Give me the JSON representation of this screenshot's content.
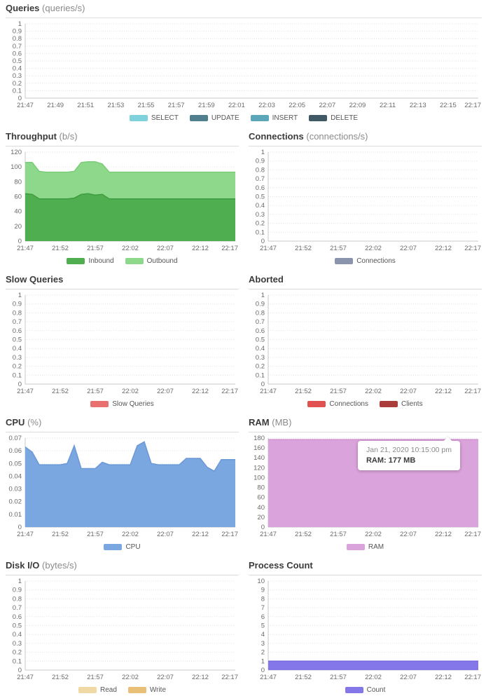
{
  "tooltip": {
    "date": "Jan 21, 2020 10:15:00 pm",
    "value": "RAM: 177 MB"
  },
  "chart_data": [
    {
      "type": "area",
      "title": "Queries",
      "units": "(queries/s)",
      "ymax": 1,
      "ylim": [
        0,
        1
      ],
      "grid": true,
      "legend_position": "bottom",
      "ylabels": [
        "1",
        "0.9",
        "0.8",
        "0.7",
        "0.6",
        "0.5",
        "0.4",
        "0.3",
        "0.2",
        "0.1",
        "0"
      ],
      "xlabels": [
        "21:47",
        "21:49",
        "21:51",
        "21:53",
        "21:55",
        "21:57",
        "21:59",
        "22:01",
        "22:03",
        "22:05",
        "22:07",
        "22:09",
        "22:11",
        "22:13",
        "22:15",
        "22:17"
      ],
      "x_range": [
        "21:47",
        "22:17"
      ],
      "series": [
        {
          "name": "SELECT",
          "color": "#7fd1db",
          "values": []
        },
        {
          "name": "UPDATE",
          "color": "#50808d",
          "values": []
        },
        {
          "name": "INSERT",
          "color": "#5ba6b8",
          "values": []
        },
        {
          "name": "DELETE",
          "color": "#3f5a64",
          "values": []
        }
      ]
    },
    {
      "type": "area",
      "title": "Throughput",
      "units": "(b/s)",
      "ymax": 120,
      "ylim": [
        0,
        120
      ],
      "grid": true,
      "legend_position": "bottom",
      "ylabels": [
        "120",
        "100",
        "80",
        "60",
        "40",
        "20",
        "0"
      ],
      "xlabels": [
        "21:47",
        "21:52",
        "21:57",
        "22:02",
        "22:07",
        "22:12",
        "22:17"
      ],
      "x_range": [
        "21:47",
        "22:17"
      ],
      "series": [
        {
          "name": "Inbound",
          "color": "#4faf50",
          "stroke": "#3f9b40",
          "values": [
            64,
            63,
            57,
            57,
            57,
            57,
            57,
            58,
            63,
            64,
            62,
            63,
            57,
            57,
            57,
            57,
            57,
            57,
            57,
            57,
            57,
            57,
            57,
            57,
            57,
            57,
            57,
            57,
            57,
            57,
            57
          ]
        },
        {
          "name": "Outbound",
          "color": "#8ed88b",
          "stroke": "#7bcc78",
          "values": [
            106,
            106,
            94,
            93,
            93,
            93,
            93,
            94,
            106,
            107,
            107,
            104,
            93,
            93,
            93,
            93,
            93,
            93,
            93,
            93,
            93,
            93,
            93,
            93,
            93,
            93,
            93,
            93,
            93,
            93,
            93
          ]
        }
      ]
    },
    {
      "type": "area",
      "title": "Connections",
      "units": "(connections/s)",
      "ymax": 1,
      "ylim": [
        0,
        1
      ],
      "grid": true,
      "legend_position": "bottom",
      "ylabels": [
        "1",
        "0.9",
        "0.8",
        "0.7",
        "0.6",
        "0.5",
        "0.4",
        "0.3",
        "0.2",
        "0.1",
        "0"
      ],
      "xlabels": [
        "21:47",
        "21:52",
        "21:57",
        "22:02",
        "22:07",
        "22:12",
        "22:17"
      ],
      "x_range": [
        "21:47",
        "22:17"
      ],
      "series": [
        {
          "name": "Connections",
          "color": "#8a94ad",
          "values": []
        }
      ]
    },
    {
      "type": "area",
      "title": "Slow Queries",
      "units": "",
      "ymax": 1,
      "ylim": [
        0,
        1
      ],
      "grid": true,
      "legend_position": "bottom",
      "ylabels": [
        "1",
        "0.9",
        "0.8",
        "0.7",
        "0.6",
        "0.5",
        "0.4",
        "0.3",
        "0.2",
        "0.1",
        "0"
      ],
      "xlabels": [
        "21:47",
        "21:52",
        "21:57",
        "22:02",
        "22:07",
        "22:12",
        "22:17"
      ],
      "x_range": [
        "21:47",
        "22:17"
      ],
      "series": [
        {
          "name": "Slow Queries",
          "color": "#e87170",
          "values": []
        }
      ]
    },
    {
      "type": "area",
      "title": "Aborted",
      "units": "",
      "ymax": 1,
      "ylim": [
        0,
        1
      ],
      "grid": true,
      "legend_position": "bottom",
      "ylabels": [
        "1",
        "0.9",
        "0.8",
        "0.7",
        "0.6",
        "0.5",
        "0.4",
        "0.3",
        "0.2",
        "0.1",
        "0"
      ],
      "xlabels": [
        "21:47",
        "21:52",
        "21:57",
        "22:02",
        "22:07",
        "22:12",
        "22:17"
      ],
      "x_range": [
        "21:47",
        "22:17"
      ],
      "series": [
        {
          "name": "Connections",
          "color": "#e0514f",
          "values": []
        },
        {
          "name": "Clients",
          "color": "#aa3c3a",
          "values": []
        }
      ]
    },
    {
      "type": "area",
      "title": "CPU",
      "units": "(%)",
      "ymax": 0.07,
      "ylim": [
        0,
        0.07
      ],
      "grid": true,
      "legend_position": "bottom",
      "ylabels": [
        "0.07",
        "0.06",
        "0.05",
        "0.04",
        "0.03",
        "0.02",
        "0.01",
        "0"
      ],
      "xlabels": [
        "21:47",
        "21:52",
        "21:57",
        "22:02",
        "22:07",
        "22:12",
        "22:17"
      ],
      "x_range": [
        "21:47",
        "22:17"
      ],
      "series": [
        {
          "name": "CPU",
          "color": "#7ba7e0",
          "stroke": "#6b99d6",
          "values": [
            0.063,
            0.059,
            0.049,
            0.049,
            0.049,
            0.049,
            0.05,
            0.064,
            0.046,
            0.046,
            0.046,
            0.051,
            0.049,
            0.049,
            0.049,
            0.049,
            0.064,
            0.067,
            0.05,
            0.049,
            0.049,
            0.049,
            0.049,
            0.054,
            0.054,
            0.054,
            0.047,
            0.044,
            0.053,
            0.053,
            0.053
          ]
        }
      ]
    },
    {
      "type": "area",
      "title": "RAM",
      "units": "(MB)",
      "ymax": 180,
      "ylim": [
        0,
        180
      ],
      "grid": true,
      "legend_position": "bottom",
      "ylabels": [
        "180",
        "160",
        "140",
        "120",
        "100",
        "80",
        "60",
        "40",
        "20",
        "0"
      ],
      "xlabels": [
        "21:47",
        "21:52",
        "21:57",
        "22:02",
        "22:07",
        "22:12",
        "22:17"
      ],
      "x_range": [
        "21:47",
        "22:17"
      ],
      "series": [
        {
          "name": "RAM",
          "color": "#dba3db",
          "stroke": "#d193d1",
          "values": [
            177,
            177,
            177,
            177,
            177,
            177,
            177,
            177,
            177,
            177,
            177,
            177,
            177,
            177,
            177,
            177,
            177,
            177,
            177,
            177,
            177,
            177,
            177,
            177,
            177,
            177,
            177,
            177,
            177,
            177,
            177
          ]
        }
      ]
    },
    {
      "type": "area",
      "title": "Disk I/O",
      "units": "(bytes/s)",
      "ymax": 1,
      "ylim": [
        0,
        1
      ],
      "grid": true,
      "legend_position": "bottom",
      "ylabels": [
        "1",
        "0.9",
        "0.8",
        "0.7",
        "0.6",
        "0.5",
        "0.4",
        "0.3",
        "0.2",
        "0.1",
        "0"
      ],
      "xlabels": [
        "21:47",
        "21:52",
        "21:57",
        "22:02",
        "22:07",
        "22:12",
        "22:17"
      ],
      "x_range": [
        "21:47",
        "22:17"
      ],
      "series": [
        {
          "name": "Read",
          "color": "#f0d9a4",
          "values": []
        },
        {
          "name": "Write",
          "color": "#eabf77",
          "values": []
        }
      ]
    },
    {
      "type": "area",
      "title": "Process Count",
      "units": "",
      "ymax": 10,
      "ylim": [
        0,
        10
      ],
      "grid": true,
      "legend_position": "bottom",
      "ylabels": [
        "10",
        "9",
        "8",
        "7",
        "6",
        "5",
        "4",
        "3",
        "2",
        "1",
        "0"
      ],
      "xlabels": [
        "21:47",
        "21:52",
        "21:57",
        "22:02",
        "22:07",
        "22:12",
        "22:17"
      ],
      "x_range": [
        "21:47",
        "22:17"
      ],
      "series": [
        {
          "name": "Count",
          "color": "#8477e9",
          "stroke": "#7668e0",
          "values": [
            1,
            1,
            1,
            1,
            1,
            1,
            1,
            1,
            1,
            1,
            1,
            1,
            1,
            1,
            1,
            1,
            1,
            1,
            1,
            1,
            1,
            1,
            1,
            1,
            1,
            1,
            1,
            1,
            1,
            1,
            1
          ]
        }
      ]
    }
  ]
}
